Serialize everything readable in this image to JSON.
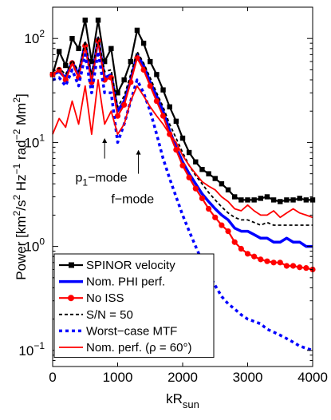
{
  "chart_data": {
    "type": "line",
    "title": "",
    "xlabel": "kR",
    "xlabel_sub": "sun",
    "ylabel": "Power [km²/s² Hz⁻¹ rad⁻² Mm²]",
    "ylabel_parts": [
      "Power [km",
      "2",
      "/s",
      "2",
      " Hz",
      "−1",
      " rad",
      "−2",
      " Mm",
      "2",
      "]"
    ],
    "xlim": [
      0,
      4000
    ],
    "ylim": [
      0.07,
      200
    ],
    "yscale": "log",
    "grid": false,
    "x_ticks": [
      0,
      1000,
      2000,
      3000,
      4000
    ],
    "x_tick_labels": [
      "0",
      "1000",
      "2000",
      "3000",
      "4000"
    ],
    "y_ticks": [
      0.1,
      1,
      10,
      100
    ],
    "y_tick_labels": [
      [
        "10",
        "−1"
      ],
      [
        "10",
        "0"
      ],
      [
        "10",
        "1"
      ],
      [
        "10",
        "2"
      ]
    ],
    "legend_position": "bottom-left",
    "annotations": [
      {
        "text": "p",
        "sub": "1",
        "rest": "−mode",
        "arrow_x": 800,
        "arrow_y_from": 7.0,
        "arrow_y_to": 11.0,
        "x": 350,
        "y": 4.2
      },
      {
        "text": "f−mode",
        "sub": "",
        "rest": "",
        "arrow_x": 1320,
        "arrow_y_from": 5.0,
        "arrow_y_to": 8.5,
        "x": 900,
        "y": 2.6
      }
    ],
    "series": [
      {
        "name": "SPINOR velocity",
        "color": "#000000",
        "width": 2.2,
        "dash": "",
        "marker": "square",
        "x": [
          0,
          100,
          200,
          300,
          400,
          500,
          600,
          700,
          800,
          900,
          1000,
          1100,
          1200,
          1300,
          1400,
          1500,
          1600,
          1700,
          1800,
          1900,
          2000,
          2100,
          2200,
          2300,
          2400,
          2500,
          2600,
          2700,
          2800,
          2900,
          3000,
          3100,
          3200,
          3300,
          3400,
          3500,
          3600,
          3700,
          3800,
          3900,
          4000
        ],
        "y": [
          45,
          75,
          55,
          100,
          80,
          150,
          60,
          150,
          60,
          80,
          30,
          40,
          60,
          120,
          90,
          60,
          45,
          32,
          22,
          16,
          11,
          8,
          6.5,
          5.5,
          5.0,
          4.5,
          4.0,
          3.5,
          3.0,
          2.8,
          2.8,
          2.8,
          2.9,
          3.0,
          2.8,
          2.7,
          2.8,
          2.8,
          2.9,
          2.8,
          2.8
        ]
      },
      {
        "name": "Nom. PHI perf.",
        "color": "#0000ff",
        "width": 3.5,
        "dash": "",
        "marker": "",
        "x": [
          0,
          100,
          200,
          300,
          400,
          500,
          600,
          700,
          800,
          900,
          1000,
          1100,
          1200,
          1300,
          1400,
          1500,
          1600,
          1700,
          1800,
          1900,
          2000,
          2100,
          2200,
          2300,
          2400,
          2500,
          2600,
          2700,
          2800,
          2900,
          3000,
          3100,
          3200,
          3300,
          3400,
          3500,
          3600,
          3700,
          3800,
          3900,
          4000
        ],
        "y": [
          45,
          48,
          42,
          60,
          45,
          90,
          40,
          100,
          42,
          45,
          20,
          25,
          40,
          70,
          55,
          38,
          28,
          20,
          13,
          9,
          6.5,
          5,
          4,
          3.2,
          2.7,
          2.3,
          2.0,
          1.8,
          1.5,
          1.4,
          1.4,
          1.3,
          1.2,
          1.2,
          1.1,
          1.1,
          1.2,
          1.1,
          1.1,
          1.0,
          1.0
        ]
      },
      {
        "name": "No ISS",
        "color": "#ff0000",
        "width": 2.2,
        "dash": "",
        "marker": "circle",
        "x": [
          0,
          100,
          200,
          300,
          400,
          500,
          600,
          700,
          800,
          900,
          1000,
          1100,
          1200,
          1300,
          1400,
          1500,
          1600,
          1700,
          1800,
          1900,
          2000,
          2100,
          2200,
          2300,
          2400,
          2500,
          2600,
          2700,
          2800,
          2900,
          3000,
          3100,
          3200,
          3300,
          3400,
          3500,
          3600,
          3700,
          3800,
          3900,
          4000
        ],
        "y": [
          45,
          50,
          40,
          58,
          42,
          85,
          38,
          95,
          40,
          42,
          18,
          23,
          38,
          65,
          50,
          35,
          25,
          18,
          12,
          8.5,
          6,
          4.6,
          3.6,
          2.9,
          2.3,
          1.9,
          1.6,
          1.4,
          1.1,
          0.95,
          0.85,
          0.8,
          0.75,
          0.72,
          0.7,
          0.7,
          0.65,
          0.65,
          0.63,
          0.62,
          0.6
        ]
      },
      {
        "name": "S/N = 50",
        "color": "#000000",
        "width": 1.8,
        "dash": "4,3",
        "marker": "",
        "x": [
          0,
          100,
          200,
          300,
          400,
          500,
          600,
          700,
          800,
          900,
          1000,
          1100,
          1200,
          1300,
          1400,
          1500,
          1600,
          1700,
          1800,
          1900,
          2000,
          2100,
          2200,
          2300,
          2400,
          2500,
          2600,
          2700,
          2800,
          2900,
          3000,
          3100,
          3200,
          3300,
          3400,
          3500,
          3600,
          3700,
          3800,
          3900,
          4000
        ],
        "y": [
          48,
          52,
          45,
          62,
          48,
          95,
          45,
          105,
          48,
          50,
          22,
          28,
          45,
          75,
          58,
          42,
          30,
          22,
          15,
          11,
          8,
          6,
          4.8,
          4,
          3.3,
          2.8,
          2.4,
          2.1,
          1.9,
          1.8,
          1.8,
          1.7,
          1.6,
          1.7,
          1.6,
          1.6,
          1.6,
          1.6,
          1.6,
          1.6,
          1.6
        ]
      },
      {
        "name": "Worst−case MTF",
        "color": "#0000ff",
        "width": 3.5,
        "dash": "4,4",
        "marker": "",
        "x": [
          0,
          100,
          200,
          300,
          400,
          500,
          600,
          700,
          800,
          900,
          1000,
          1100,
          1200,
          1300,
          1400,
          1500,
          1600,
          1700,
          1800,
          1900,
          2000,
          2100,
          2200,
          2300,
          2400,
          2500,
          2600,
          2700,
          2800,
          2900,
          3000,
          3100,
          3200,
          3300,
          3400,
          3500,
          3600,
          3700,
          3800,
          3900,
          4000
        ],
        "y": [
          40,
          42,
          35,
          50,
          35,
          70,
          30,
          75,
          30,
          30,
          10,
          15,
          25,
          40,
          30,
          20,
          12,
          7,
          4.5,
          3,
          2,
          1.4,
          1.0,
          0.72,
          0.55,
          0.42,
          0.33,
          0.28,
          0.25,
          0.22,
          0.2,
          0.19,
          0.18,
          0.16,
          0.15,
          0.14,
          0.13,
          0.12,
          0.11,
          0.105,
          0.1
        ]
      },
      {
        "name": "Nom. perf. (ρ = 60°)",
        "color": "#ff0000",
        "width": 1.8,
        "dash": "",
        "marker": "",
        "x": [
          0,
          100,
          200,
          300,
          400,
          500,
          600,
          700,
          800,
          900,
          1000,
          1100,
          1200,
          1300,
          1400,
          1500,
          1600,
          1700,
          1800,
          1900,
          2000,
          2100,
          2200,
          2300,
          2400,
          2500,
          2600,
          2700,
          2800,
          2900,
          3000,
          3100,
          3200,
          3300,
          3400,
          3500,
          3600,
          3700,
          3800,
          3900,
          4000
        ],
        "y": [
          12,
          17,
          14,
          25,
          15,
          35,
          12,
          40,
          15,
          20,
          12,
          15,
          25,
          35,
          28,
          22,
          18,
          15,
          12,
          10,
          7.5,
          6,
          5,
          4.2,
          3.8,
          3.5,
          3,
          2.7,
          2.3,
          2.2,
          2.5,
          2.2,
          2.0,
          2.0,
          2.2,
          1.9,
          2.1,
          2.3,
          2.1,
          2.0,
          1.9
        ]
      }
    ]
  }
}
